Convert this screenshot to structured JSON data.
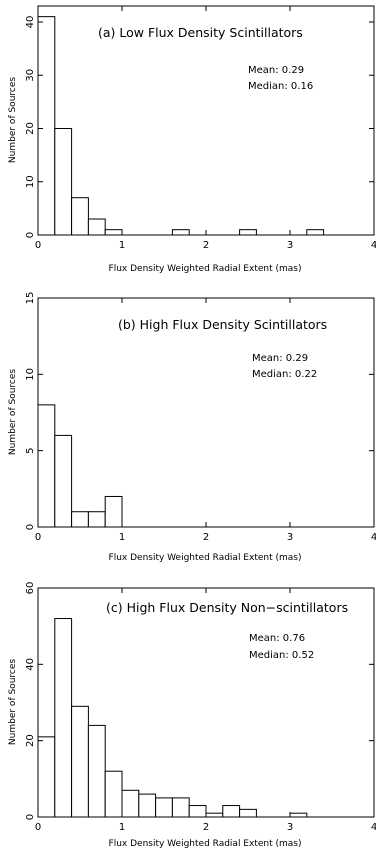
{
  "chart_data": [
    {
      "type": "bar",
      "title": "(a) Low Flux Density Scintillators",
      "mean_label": "Mean: 0.29",
      "median_label": "Median: 0.16",
      "xlabel": "Flux Density Weighted Radial Extent (mas)",
      "ylabel": "Number of Sources",
      "xlim": [
        0,
        4
      ],
      "ylim": [
        0,
        43
      ],
      "xticks": [
        "0",
        "1",
        "2",
        "3",
        "4"
      ],
      "yticks": [
        "0",
        "10",
        "20",
        "30",
        "40"
      ],
      "bin_width": 0.2,
      "bin_starts": [
        0.0,
        0.2,
        0.4,
        0.6,
        0.8,
        1.6,
        2.4,
        3.2
      ],
      "values": [
        41,
        20,
        7,
        3,
        1,
        1,
        1,
        1
      ],
      "bar_fill": "#ffffff",
      "line_color": "#000000",
      "grid": false,
      "legend": "none"
    },
    {
      "type": "bar",
      "title": "(b) High Flux Density Scintillators",
      "mean_label": "Mean: 0.29",
      "median_label": "Median: 0.22",
      "xlabel": "Flux Density Weighted Radial Extent (mas)",
      "ylabel": "Number of Sources",
      "xlim": [
        0,
        4
      ],
      "ylim": [
        0,
        15
      ],
      "xticks": [
        "0",
        "1",
        "2",
        "3",
        "4"
      ],
      "yticks": [
        "0",
        "5",
        "10",
        "15"
      ],
      "bin_width": 0.2,
      "bin_starts": [
        0.0,
        0.2,
        0.4,
        0.6,
        0.8
      ],
      "values": [
        8,
        6,
        1,
        1,
        2
      ],
      "bar_fill": "#ffffff",
      "line_color": "#000000",
      "grid": false,
      "legend": "none"
    },
    {
      "type": "bar",
      "title": "(c) High Flux Density Non−scintillators",
      "mean_label": "Mean: 0.76",
      "median_label": "Median: 0.52",
      "xlabel": "Flux Density Weighted Radial Extent (mas)",
      "ylabel": "Number of Sources",
      "xlim": [
        0,
        4
      ],
      "ylim": [
        0,
        60
      ],
      "xticks": [
        "0",
        "1",
        "2",
        "3",
        "4"
      ],
      "yticks": [
        "0",
        "20",
        "40",
        "60"
      ],
      "bin_width": 0.2,
      "bin_starts": [
        0.0,
        0.2,
        0.4,
        0.6,
        0.8,
        1.0,
        1.2,
        1.4,
        1.6,
        1.8,
        2.0,
        2.2,
        2.4,
        3.0
      ],
      "values": [
        21,
        52,
        29,
        24,
        12,
        7,
        6,
        5,
        5,
        3,
        1,
        3,
        2,
        1
      ],
      "bar_fill": "#ffffff",
      "line_color": "#000000",
      "grid": false,
      "legend": "none"
    }
  ]
}
